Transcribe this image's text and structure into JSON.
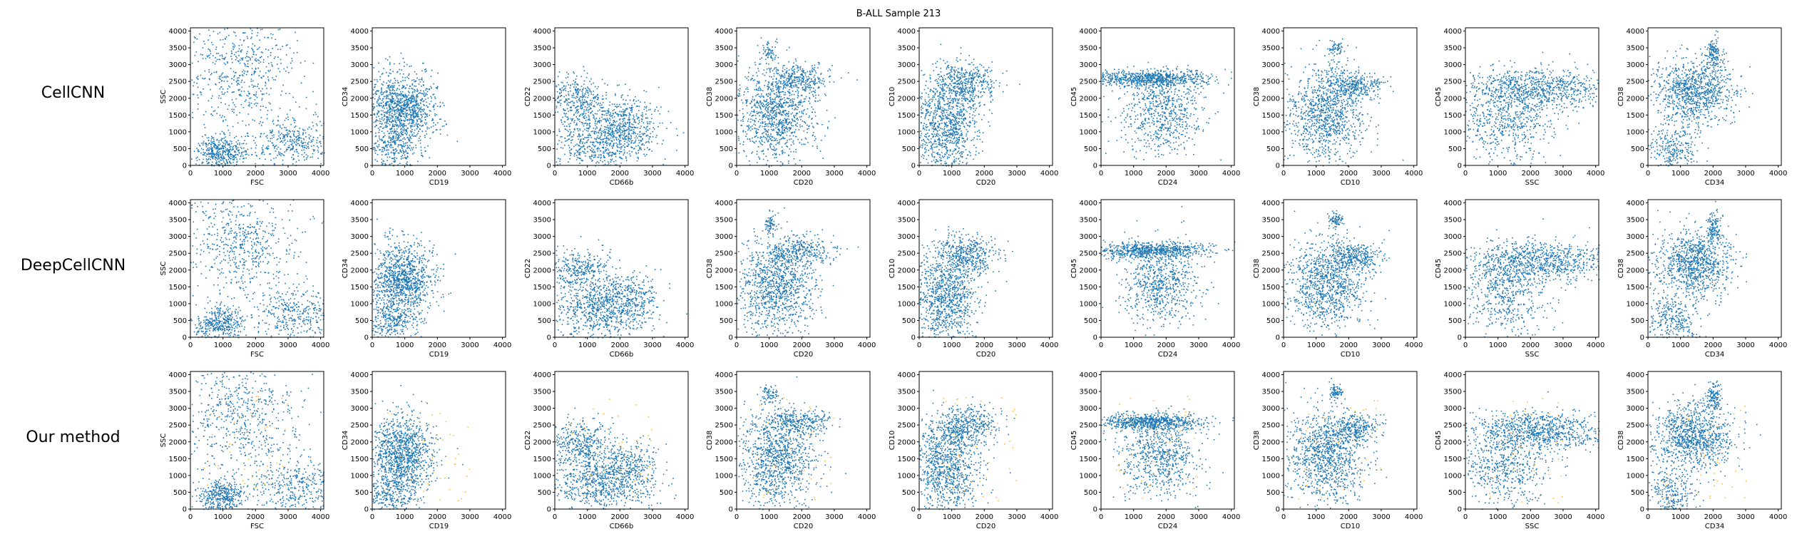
{
  "suptitle": "B-ALL Sample 213",
  "rows": [
    {
      "label": "CellCNN"
    },
    {
      "label": "DeepCellCNN"
    },
    {
      "label": "Our method"
    }
  ],
  "colors": {
    "cells": "#1f77b4",
    "selected": "#ffbb33",
    "axes": "#000000"
  },
  "chart_data": {
    "type": "scatter",
    "title": "B-ALL Sample 213",
    "xlim": [
      0,
      4096
    ],
    "ylim": [
      0,
      4096
    ],
    "ticks": [
      0,
      500,
      1000,
      1500,
      2000,
      2500,
      3000,
      3500,
      4000
    ],
    "xticks": [
      0,
      1000,
      2000,
      3000,
      4000
    ],
    "grid": false,
    "panels": [
      {
        "xlabel": "FSC",
        "ylabel": "SSC"
      },
      {
        "xlabel": "CD19",
        "ylabel": "CD34"
      },
      {
        "xlabel": "CD66b",
        "ylabel": "CD22"
      },
      {
        "xlabel": "CD20",
        "ylabel": "CD38"
      },
      {
        "xlabel": "CD20",
        "ylabel": "CD10"
      },
      {
        "xlabel": "CD24",
        "ylabel": "CD45"
      },
      {
        "xlabel": "CD10",
        "ylabel": "CD38"
      },
      {
        "xlabel": "SSC",
        "ylabel": "CD45"
      },
      {
        "xlabel": "CD34",
        "ylabel": "CD38"
      }
    ]
  }
}
